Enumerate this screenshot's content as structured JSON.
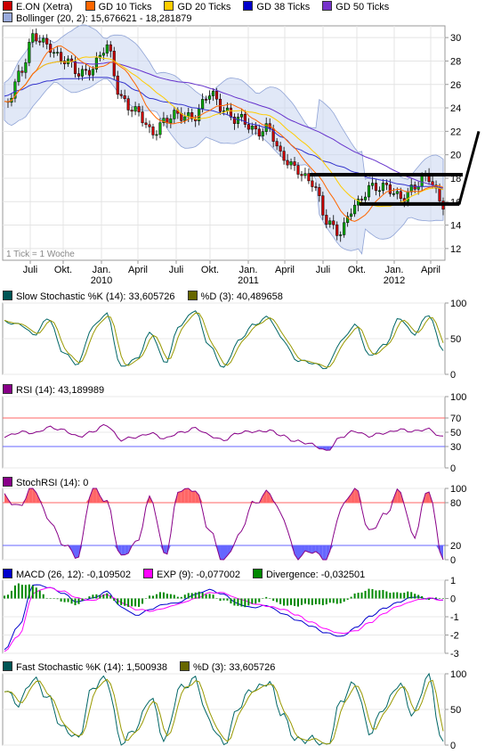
{
  "colors": {
    "price": "#ff3333",
    "gd10": "#ff6600",
    "gd20": "#ffcc00",
    "gd38": "#3333cc",
    "gd50": "#6633cc",
    "bollinger": "#aabbdd",
    "green": "#006600",
    "purple": "#880088",
    "blue": "#0000cc",
    "magenta": "#ff00ff",
    "red_line": "#ff6666",
    "blue_line": "#6666ff"
  },
  "panels": {
    "price": {
      "legend_row1": [
        {
          "label": "E.ON (Xetra)",
          "color": "#cc0000"
        },
        {
          "label": "GD 10 Ticks",
          "color": "#ff6600"
        },
        {
          "label": "GD 20 Ticks",
          "color": "#ffcc00"
        },
        {
          "label": "GD 38 Ticks",
          "color": "#0000cc"
        },
        {
          "label": "GD 50 Ticks",
          "color": "#7733cc"
        }
      ],
      "legend_row2": [
        {
          "label": "Bollinger (20, 2): 15,676621 - 18,281879",
          "color": "#99aadd"
        }
      ],
      "y_ticks": [
        "30",
        "28",
        "26",
        "24",
        "22",
        "20",
        "18",
        "16",
        "14",
        "12"
      ],
      "x_ticks": [
        "Juli",
        "Okt.",
        "Jan.",
        "April",
        "Juli",
        "Okt.",
        "Jan.",
        "April",
        "Juli",
        "Okt.",
        "Jan.",
        "April"
      ],
      "x_years": [
        "2010",
        "2011",
        "2012"
      ],
      "note": "1 Tick = 1 Woche"
    },
    "slow_stoch": {
      "legend": [
        {
          "label": "Slow Stochastic %K (14): 33,605726",
          "color": "#005555"
        },
        {
          "label": "%D (3): 40,489658",
          "color": "#666600"
        }
      ],
      "y_ticks": [
        "100",
        "50",
        "0"
      ]
    },
    "rsi": {
      "legend": [
        {
          "label": "RSI (14): 43,189989",
          "color": "#880088"
        }
      ],
      "y_ticks": [
        "100",
        "70",
        "50",
        "30",
        "0"
      ]
    },
    "stochrsi": {
      "legend": [
        {
          "label": "StochRSI (14): 0",
          "color": "#880088"
        }
      ],
      "y_ticks": [
        "100",
        "80",
        "20",
        "0"
      ]
    },
    "macd": {
      "legend": [
        {
          "label": "MACD (26, 12): -0,109502",
          "color": "#0000cc"
        },
        {
          "label": "EXP (9): -0,077002",
          "color": "#ff00ff"
        },
        {
          "label": "Divergence: -0,032501",
          "color": "#008800"
        }
      ],
      "y_ticks": [
        "1",
        "0",
        "-1",
        "-2",
        "-3"
      ]
    },
    "fast_stoch": {
      "legend": [
        {
          "label": "Fast Stochastic %K (14): 1,500938",
          "color": "#005555"
        },
        {
          "label": "%D (3): 33,605726",
          "color": "#666600"
        }
      ],
      "y_ticks": [
        "100",
        "50",
        "0"
      ]
    }
  },
  "chart_data": [
    {
      "type": "line",
      "title": "E.ON (Xetra)",
      "ylim": [
        11,
        31
      ],
      "x": [
        0,
        0.05,
        0.1,
        0.13,
        0.17,
        0.22,
        0.27,
        0.3,
        0.34,
        0.38,
        0.42,
        0.46,
        0.5,
        0.54,
        0.58,
        0.6,
        0.62,
        0.64,
        0.66,
        0.7,
        0.74,
        0.76,
        0.77,
        0.78,
        0.8,
        0.83,
        0.86,
        0.9,
        0.94,
        0.97,
        1.0
      ],
      "series": [
        {
          "name": "E.ON (Xetra)",
          "values": [
            24,
            27,
            29.8,
            29.5,
            28,
            27,
            27.5,
            29,
            25,
            23.5,
            22,
            23,
            23.2,
            23.5,
            25,
            24,
            23,
            22,
            22.5,
            19.5,
            19,
            17.5,
            14.5,
            13.5,
            15.5,
            17.5,
            17,
            16.5,
            17.2,
            18,
            16
          ]
        },
        {
          "name": "GD 38 Ticks",
          "values": [
            25,
            25.5,
            26,
            26.3,
            26.5,
            26.5,
            26.6,
            26.6,
            26.2,
            25.5,
            24.8,
            24.5,
            24.3,
            24,
            23.8,
            23.5,
            23,
            22.6,
            22.3,
            21.5,
            20.5,
            20,
            19.4,
            19,
            18.5,
            18,
            17.8,
            17.5,
            17.3,
            17.3,
            17.2
          ]
        }
      ]
    },
    {
      "type": "line",
      "title": "Slow Stochastic %K (14): 33,605726",
      "ylim": [
        0,
        100
      ],
      "series": [
        {
          "name": "Slow Stochastic %K (14): 33,605726",
          "values": [
            75,
            70,
            55,
            80,
            30,
            15,
            65,
            85,
            10,
            20,
            60,
            15,
            70,
            90,
            40,
            10,
            45,
            70,
            80,
            50,
            20,
            15,
            10,
            45,
            70,
            25,
            40,
            80,
            55,
            85,
            34
          ]
        }
      ]
    },
    {
      "type": "line",
      "title": "RSI (14): 43,189989",
      "ylim": [
        0,
        100
      ],
      "series": [
        {
          "name": "RSI (14): 43,189989",
          "values": [
            45,
            50,
            48,
            58,
            52,
            45,
            50,
            60,
            40,
            42,
            50,
            40,
            50,
            56,
            45,
            40,
            48,
            52,
            52,
            45,
            38,
            32,
            25,
            42,
            52,
            45,
            48,
            55,
            50,
            55,
            43
          ]
        }
      ]
    },
    {
      "type": "line",
      "title": "StochRSI (14): 0",
      "ylim": [
        0,
        100
      ],
      "series": [
        {
          "name": "StochRSI (14): 0",
          "values": [
            90,
            75,
            100,
            60,
            20,
            5,
            100,
            80,
            5,
            20,
            90,
            5,
            100,
            100,
            40,
            0,
            30,
            80,
            95,
            60,
            5,
            10,
            0,
            70,
            100,
            40,
            60,
            100,
            30,
            100,
            0
          ]
        }
      ]
    },
    {
      "type": "line",
      "title": "MACD (26, 12): -0,109502",
      "ylim": [
        -3,
        1
      ],
      "series": [
        {
          "name": "MACD (26, 12): -0,109502",
          "values": [
            -2.8,
            -1.5,
            0.8,
            0.6,
            0.3,
            -0.2,
            0.0,
            0.4,
            -0.5,
            -0.9,
            -0.6,
            -0.3,
            -0.2,
            0.2,
            0.5,
            0.2,
            -0.3,
            -0.5,
            -0.4,
            -0.8,
            -1.2,
            -1.5,
            -1.9,
            -2.1,
            -1.6,
            -1.0,
            -0.5,
            -0.2,
            0.1,
            0.0,
            -0.1
          ]
        },
        {
          "name": "EXP (9): -0,077002",
          "values": [
            -2.9,
            -2.0,
            0.3,
            0.6,
            0.4,
            0.0,
            -0.1,
            0.2,
            -0.2,
            -0.6,
            -0.7,
            -0.5,
            -0.3,
            0.0,
            0.3,
            0.3,
            0.0,
            -0.3,
            -0.4,
            -0.6,
            -0.9,
            -1.3,
            -1.7,
            -1.9,
            -1.8,
            -1.3,
            -0.8,
            -0.4,
            -0.1,
            0.0,
            -0.08
          ]
        }
      ]
    },
    {
      "type": "line",
      "title": "Fast Stochastic %K (14): 1,500938",
      "ylim": [
        0,
        100
      ],
      "series": [
        {
          "name": "Fast Stochastic %K (14): 1,500938",
          "values": [
            80,
            60,
            90,
            70,
            20,
            10,
            80,
            90,
            5,
            20,
            70,
            5,
            80,
            95,
            30,
            5,
            50,
            80,
            90,
            40,
            10,
            5,
            0,
            60,
            85,
            20,
            50,
            90,
            40,
            100,
            1.5
          ]
        }
      ]
    }
  ]
}
